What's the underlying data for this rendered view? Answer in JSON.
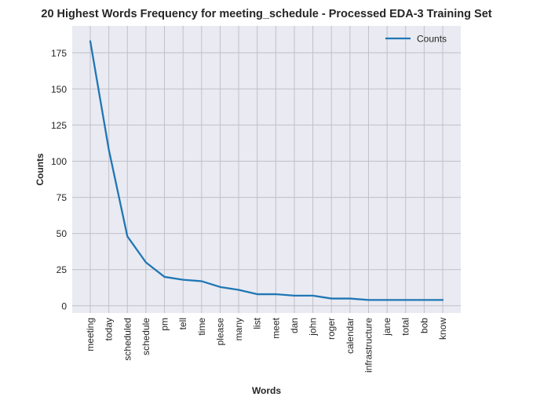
{
  "chart_data": {
    "type": "line",
    "title": "20 Highest Words Frequency for meeting_schedule - Processed EDA-3 Training Set",
    "xlabel": "Words",
    "ylabel": "Counts",
    "categories": [
      "meeting",
      "today",
      "scheduled",
      "schedule",
      "pm",
      "tell",
      "time",
      "please",
      "many",
      "list",
      "meet",
      "dan",
      "john",
      "roger",
      "calendar",
      "infrastructure",
      "jane",
      "total",
      "bob",
      "know"
    ],
    "series": [
      {
        "name": "Counts",
        "values": [
          183,
          108,
          48,
          30,
          20,
          18,
          17,
          13,
          11,
          8,
          8,
          7,
          7,
          5,
          5,
          4,
          4,
          4,
          4,
          4
        ]
      }
    ],
    "ylim": [
      -5,
      193.6
    ],
    "yticks": [
      0,
      25,
      50,
      75,
      100,
      125,
      150,
      175
    ],
    "grid": true,
    "legend_position": "top-right",
    "colors": {
      "line": "#1f77b4",
      "plot_background": "#eaeaf2",
      "grid": "#c0c0c8"
    }
  }
}
